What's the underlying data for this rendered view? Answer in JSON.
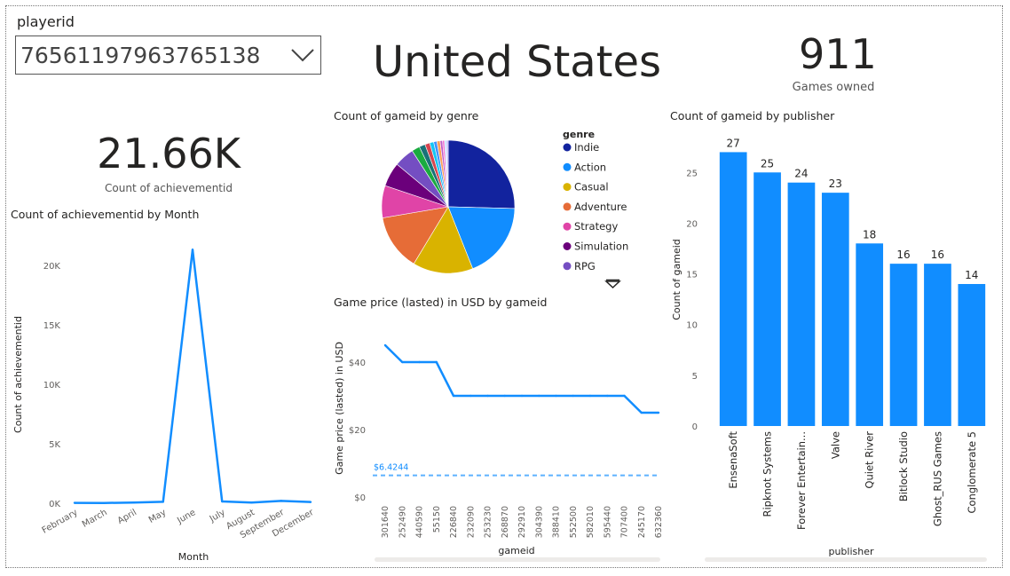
{
  "slicer": {
    "label": "playerid",
    "value": "76561197963765138"
  },
  "country": "United States",
  "games_card": {
    "value": "911",
    "label": "Games owned"
  },
  "achievements_card": {
    "value": "21.66K",
    "label": "Count of achievementid"
  },
  "chart_data": [
    {
      "type": "line",
      "title": "Count of achievementid by Month",
      "xlabel": "Month",
      "ylabel": "Count of achievementid",
      "categories": [
        "February",
        "March",
        "April",
        "May",
        "June",
        "July",
        "August",
        "September",
        "December"
      ],
      "values": [
        30,
        20,
        60,
        120,
        21300,
        150,
        60,
        200,
        100
      ],
      "ylim": [
        0,
        22000
      ],
      "yticks": [
        "0K",
        "5K",
        "10K",
        "15K",
        "20K"
      ],
      "color": "#118DFF"
    },
    {
      "type": "pie",
      "title": "Count of gameid by genre",
      "legend_title": "genre",
      "labels": [
        "Indie",
        "Action",
        "Casual",
        "Adventure",
        "Strategy",
        "Simulation",
        "RPG"
      ],
      "values": [
        26,
        19,
        15,
        14,
        8,
        6,
        5
      ],
      "colors": [
        "#12239E",
        "#118DFF",
        "#D9B300",
        "#E66C37",
        "#E044A7",
        "#6B007B",
        "#744EC2"
      ],
      "extra_colors": [
        "#1AAB40",
        "#197278",
        "#D64550",
        "#15C6F4",
        "#4092FF",
        "#FFA058",
        "#BE5DC9",
        "#F472D0",
        "#C5E4FF",
        "#B5A1FF"
      ]
    },
    {
      "type": "line",
      "title": "Game price (lasted) in USD by gameid",
      "xlabel": "gameid",
      "ylabel": "Game price (lasted) in USD",
      "categories": [
        "301640",
        "252490",
        "440590",
        "55150",
        "226840",
        "232090",
        "253230",
        "268870",
        "292910",
        "304390",
        "388410",
        "552500",
        "582010",
        "595440",
        "707400",
        "245170",
        "632360"
      ],
      "values": [
        45,
        40,
        40,
        40,
        30,
        30,
        30,
        30,
        30,
        30,
        30,
        30,
        30,
        30,
        30,
        25,
        25
      ],
      "average": 6.4244,
      "average_label": "$6.4244",
      "ylim": [
        0,
        50
      ],
      "yticks": [
        "$0",
        "$20",
        "$40"
      ],
      "color": "#118DFF"
    },
    {
      "type": "bar",
      "title": "Count of gameid by publisher",
      "xlabel": "publisher",
      "ylabel": "Count of gameid",
      "categories": [
        "EnsenaSoft",
        "Ripknot Systems",
        "Forever Entertain...",
        "Valve",
        "Quiet River",
        "Bitlock Studio",
        "Ghost_RUS Games",
        "Conglomerate 5"
      ],
      "values": [
        27,
        25,
        24,
        23,
        18,
        16,
        16,
        14
      ],
      "ylim": [
        0,
        28
      ],
      "yticks": [
        "0",
        "5",
        "10",
        "15",
        "20",
        "25"
      ],
      "color": "#118DFF"
    }
  ]
}
